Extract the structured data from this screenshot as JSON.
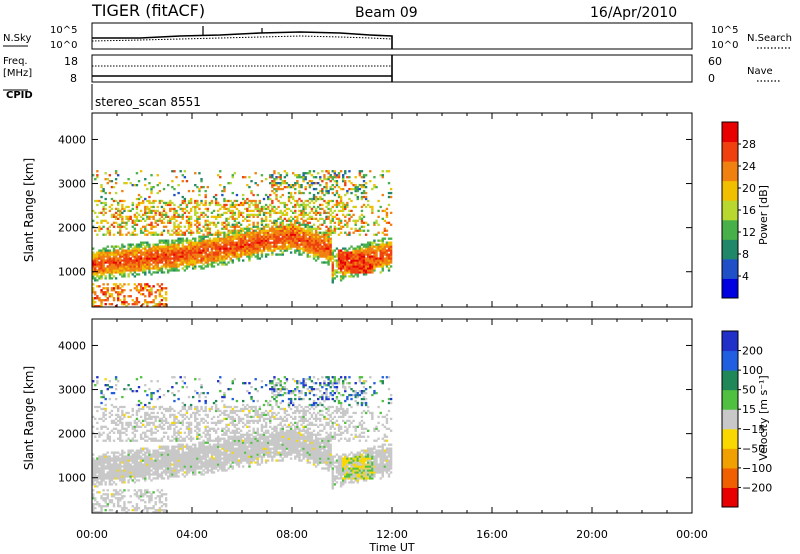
{
  "header": {
    "title": "TIGER (fitACF)",
    "beam": "Beam 09",
    "date": "16/Apr/2010",
    "cpid": "stereo_scan 8551"
  },
  "top_panels": {
    "nsky_label": "N.Sky",
    "nsearch_label": "N.Search",
    "noise_ticks": [
      "10^5",
      "10^0"
    ],
    "freq_label": "Freq.",
    "freq_unit": "[MHz]",
    "freq_ticks": [
      "18",
      "8"
    ],
    "nave_label": "Nave",
    "nave_ticks": [
      "60",
      "0"
    ],
    "cpid_label": "CPID"
  },
  "colors": {
    "power": [
      "#0000e0",
      "#2050c8",
      "#208868",
      "#48b048",
      "#b8d830",
      "#f0c000",
      "#f08010",
      "#f04010",
      "#e80000"
    ],
    "velocity": [
      "#2030c8",
      "#2060e0",
      "#208858",
      "#50c040",
      "#c8c8c8",
      "#f8d800",
      "#f0a000",
      "#f06000",
      "#e80000"
    ]
  },
  "chart_data": [
    {
      "type": "heatmap",
      "name": "power",
      "ylabel": "Slant Range [km]",
      "yticks": [
        1000,
        2000,
        3000,
        4000
      ],
      "ylim": [
        200,
        4600
      ],
      "xlim": [
        0,
        24
      ],
      "data_xlim": [
        0,
        12
      ],
      "colorbar_label": "Power [dB]",
      "colorbar_ticks": [
        "4",
        "8",
        "12",
        "16",
        "20",
        "24",
        "28"
      ],
      "colorbar_range": [
        0,
        32
      ]
    },
    {
      "type": "heatmap",
      "name": "velocity",
      "ylabel": "Slant Range [km]",
      "yticks": [
        1000,
        2000,
        3000,
        4000
      ],
      "ylim": [
        200,
        4600
      ],
      "xlim": [
        0,
        24
      ],
      "data_xlim": [
        0,
        12
      ],
      "colorbar_label": "Velocity [m s⁻¹]",
      "colorbar_ticks": [
        "200",
        "100",
        "50",
        "15",
        "−15",
        "−50",
        "−100",
        "−200"
      ]
    }
  ],
  "xaxis": {
    "label": "Time UT",
    "ticks": [
      "00:00",
      "04:00",
      "08:00",
      "12:00",
      "16:00",
      "20:00",
      "00:00"
    ]
  }
}
